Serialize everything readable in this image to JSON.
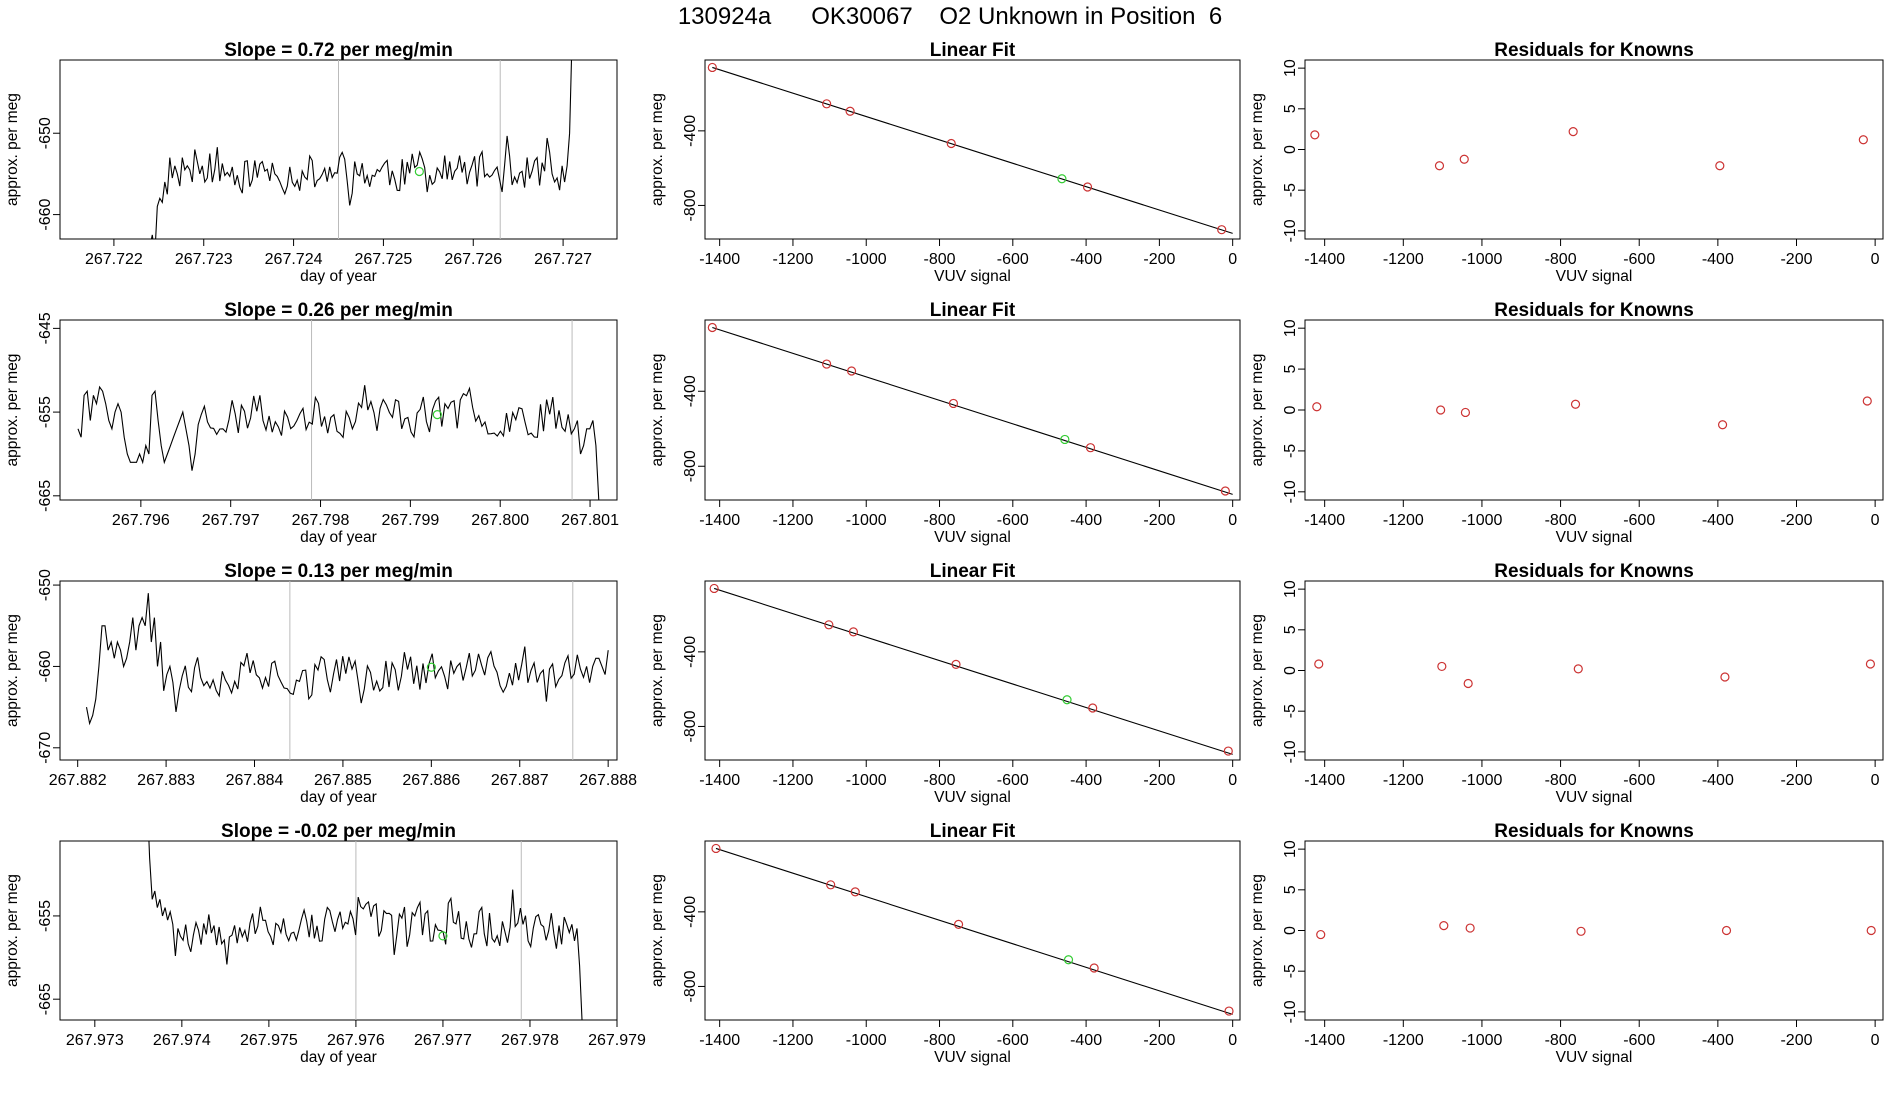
{
  "header": {
    "title": "130924a      OK30067    O2 Unknown in Position  6"
  },
  "colors": {
    "known_point": "#cc3333",
    "unknown_point": "#33cc33",
    "line": "#000000",
    "guide": "#bbbbbb"
  },
  "chart_data": [
    {
      "type": "line",
      "title": "Slope =  0.72  per meg/min",
      "xlabel": "day of year",
      "ylabel": "approx. per meg",
      "xlim": [
        267.7214,
        267.7276
      ],
      "ylim": [
        -663,
        -641
      ],
      "xticks": [
        {
          "v": 267.722,
          "l": "267.722"
        },
        {
          "v": 267.723,
          "l": "267.723"
        },
        {
          "v": 267.724,
          "l": "267.724"
        },
        {
          "v": 267.725,
          "l": "267.725"
        },
        {
          "v": 267.726,
          "l": "267.726"
        },
        {
          "v": 267.727,
          "l": "267.727"
        }
      ],
      "yticks": [
        {
          "v": -650,
          "l": "-650"
        },
        {
          "v": -660,
          "l": "-660"
        }
      ],
      "x_start": 267.7224,
      "x_end": 267.7271,
      "start_values": [
        -664,
        -662.5,
        -665,
        -659,
        -658,
        -658.5,
        -656,
        -657.5,
        -653,
        -655.5,
        -654,
        -655,
        -656.5,
        -653,
        -654.5,
        -654,
        -654.5,
        -656,
        -652,
        -653.5,
        -655,
        -654,
        -656,
        -655.5,
        -652.5
      ],
      "end_values": [
        -655,
        -656,
        -655.5,
        -657,
        -654,
        -656,
        -654,
        -650
      ],
      "end_top": -638,
      "center": -654.8,
      "seed": 11,
      "guides": [
        267.7245,
        267.7263
      ],
      "unknown_point": {
        "x": 267.7254,
        "y": -654.7
      }
    },
    {
      "type": "scatter",
      "title": "Linear Fit",
      "xlabel": "VUV signal",
      "ylabel": "approx. per meg",
      "xlim": [
        -1440,
        20
      ],
      "ylim": [
        -980,
        -20
      ],
      "xticks": [
        {
          "v": -1400,
          "l": "-1400"
        },
        {
          "v": -1200,
          "l": "-1200"
        },
        {
          "v": -1000,
          "l": "-1000"
        },
        {
          "v": -800,
          "l": "-800"
        },
        {
          "v": -600,
          "l": "-600"
        },
        {
          "v": -400,
          "l": "-400"
        },
        {
          "v": -200,
          "l": "-200"
        },
        {
          "v": 0,
          "l": "0"
        }
      ],
      "yticks": [
        {
          "v": -400,
          "l": "-400"
        },
        {
          "v": -800,
          "l": "-800"
        }
      ],
      "fit_line": [
        [
          -1420,
          -60
        ],
        [
          0,
          -950
        ]
      ],
      "knowns": [
        [
          -1420,
          -60
        ],
        [
          -1108,
          -255
        ],
        [
          -1044,
          -295
        ],
        [
          -768,
          -468
        ],
        [
          -396,
          -701
        ],
        [
          -30,
          -930
        ]
      ],
      "unknown": [
        -466,
        -657
      ]
    },
    {
      "type": "scatter",
      "title": "Residuals for Knowns",
      "xlabel": "VUV signal",
      "ylabel": "approx. per meg",
      "xlim": [
        -1450,
        20
      ],
      "ylim": [
        -11,
        11
      ],
      "xticks": [
        {
          "v": -1400,
          "l": "-1400"
        },
        {
          "v": -1200,
          "l": "-1200"
        },
        {
          "v": -1000,
          "l": "-1000"
        },
        {
          "v": -800,
          "l": "-800"
        },
        {
          "v": -600,
          "l": "-600"
        },
        {
          "v": -400,
          "l": "-400"
        },
        {
          "v": -200,
          "l": "-200"
        },
        {
          "v": 0,
          "l": "0"
        }
      ],
      "yticks": [
        {
          "v": 10,
          "l": "10"
        },
        {
          "v": 5,
          "l": "5"
        },
        {
          "v": 0,
          "l": "0"
        },
        {
          "v": -5,
          "l": "-5"
        },
        {
          "v": -10,
          "l": "-10"
        }
      ],
      "points": [
        [
          -1425,
          1.8
        ],
        [
          -1108,
          -2.0
        ],
        [
          -1045,
          -1.2
        ],
        [
          -768,
          2.2
        ],
        [
          -395,
          -2.0
        ],
        [
          -30,
          1.2
        ]
      ]
    },
    {
      "type": "line",
      "title": "Slope =  0.26  per meg/min",
      "xlabel": "day of year",
      "ylabel": "approx. per meg",
      "xlim": [
        267.7951,
        267.8013
      ],
      "ylim": [
        -665.5,
        -644
      ],
      "xticks": [
        {
          "v": 267.796,
          "l": "267.796"
        },
        {
          "v": 267.797,
          "l": "267.797"
        },
        {
          "v": 267.798,
          "l": "267.798"
        },
        {
          "v": 267.799,
          "l": "267.799"
        },
        {
          "v": 267.8,
          "l": "267.800"
        },
        {
          "v": 267.801,
          "l": "267.801"
        }
      ],
      "yticks": [
        {
          "v": -645,
          "l": "-645"
        },
        {
          "v": -655,
          "l": "-655"
        },
        {
          "v": -665,
          "l": "-665"
        }
      ],
      "x_start": 267.7953,
      "x_end": 267.8011,
      "start_values": [
        -657,
        -658,
        -653,
        -652.5,
        -656,
        -653,
        -654,
        -652,
        -652.5,
        -654,
        -656,
        -657,
        -655,
        -654,
        -655,
        -658,
        -660,
        -661,
        -661,
        -661,
        -660,
        -661,
        -659,
        -660,
        -653,
        -652.5,
        -656,
        -659,
        -661,
        -660,
        -659,
        -658,
        -657,
        -656,
        -655,
        -657,
        -659,
        -662,
        -660
      ],
      "end_values": [
        -657,
        -656,
        -660,
        -659,
        -657,
        -657,
        -656,
        -659,
        -666
      ],
      "end_top": null,
      "center": -655.3,
      "seed": 23,
      "guides": [
        267.7979,
        267.8008
      ],
      "unknown_point": {
        "x": 267.7993,
        "y": -655.3
      }
    },
    {
      "type": "scatter",
      "title": "Linear Fit",
      "xlabel": "VUV signal",
      "ylabel": "approx. per meg",
      "xlim": [
        -1440,
        20
      ],
      "ylim": [
        -980,
        -20
      ],
      "xticks": [
        {
          "v": -1400,
          "l": "-1400"
        },
        {
          "v": -1200,
          "l": "-1200"
        },
        {
          "v": -1000,
          "l": "-1000"
        },
        {
          "v": -800,
          "l": "-800"
        },
        {
          "v": -600,
          "l": "-600"
        },
        {
          "v": -400,
          "l": "-400"
        },
        {
          "v": -200,
          "l": "-200"
        },
        {
          "v": 0,
          "l": "0"
        }
      ],
      "yticks": [
        {
          "v": -400,
          "l": "-400"
        },
        {
          "v": -800,
          "l": "-800"
        }
      ],
      "fit_line": [
        [
          -1420,
          -60
        ],
        [
          0,
          -950
        ]
      ],
      "knowns": [
        [
          -1420,
          -60
        ],
        [
          -1108,
          -255
        ],
        [
          -1040,
          -292
        ],
        [
          -762,
          -465
        ],
        [
          -388,
          -701
        ],
        [
          -20,
          -932
        ]
      ],
      "unknown": [
        -458,
        -657
      ]
    },
    {
      "type": "scatter",
      "title": "Residuals for Knowns",
      "xlabel": "VUV signal",
      "ylabel": "approx. per meg",
      "xlim": [
        -1450,
        20
      ],
      "ylim": [
        -11,
        11
      ],
      "xticks": [
        {
          "v": -1400,
          "l": "-1400"
        },
        {
          "v": -1200,
          "l": "-1200"
        },
        {
          "v": -1000,
          "l": "-1000"
        },
        {
          "v": -800,
          "l": "-800"
        },
        {
          "v": -600,
          "l": "-600"
        },
        {
          "v": -400,
          "l": "-400"
        },
        {
          "v": -200,
          "l": "-200"
        },
        {
          "v": 0,
          "l": "0"
        }
      ],
      "points": [
        [
          -1420,
          0.4
        ],
        [
          -1105,
          0.0
        ],
        [
          -1042,
          -0.3
        ],
        [
          -762,
          0.7
        ],
        [
          -388,
          -1.8
        ],
        [
          -20,
          1.1
        ]
      ],
      "yticks": [
        {
          "v": 10,
          "l": "10"
        },
        {
          "v": 5,
          "l": "5"
        },
        {
          "v": 0,
          "l": "0"
        },
        {
          "v": -5,
          "l": "-5"
        },
        {
          "v": -10,
          "l": "-10"
        }
      ]
    },
    {
      "type": "line",
      "title": "Slope =  0.13  per meg/min",
      "xlabel": "day of year",
      "ylabel": "approx. per meg",
      "xlim": [
        267.8818,
        267.8881
      ],
      "ylim": [
        -671.5,
        -649.5
      ],
      "xticks": [
        {
          "v": 267.882,
          "l": "267.882"
        },
        {
          "v": 267.883,
          "l": "267.883"
        },
        {
          "v": 267.884,
          "l": "267.884"
        },
        {
          "v": 267.885,
          "l": "267.885"
        },
        {
          "v": 267.886,
          "l": "267.886"
        },
        {
          "v": 267.887,
          "l": "267.887"
        },
        {
          "v": 267.888,
          "l": "267.888"
        }
      ],
      "yticks": [
        {
          "v": -650,
          "l": "-650"
        },
        {
          "v": -660,
          "l": "-660"
        },
        {
          "v": -670,
          "l": "-670"
        }
      ],
      "x_start": 267.8821,
      "x_end": 267.888,
      "start_values": [
        -665,
        -667,
        -666,
        -664,
        -660,
        -655,
        -655,
        -658,
        -657,
        -659,
        -657,
        -658,
        -660,
        -659,
        -657,
        -654,
        -658,
        -655,
        -654,
        -655,
        -651,
        -657,
        -654,
        -660,
        -657,
        -663,
        -661,
        -660
      ],
      "end_values": [
        -660,
        -662,
        -660,
        -659,
        -659,
        -660,
        -661,
        -658
      ],
      "end_top": null,
      "center": -660.8,
      "seed": 37,
      "guides": [
        267.8844,
        267.8876
      ],
      "unknown_point": {
        "x": 267.886,
        "y": -660.1
      }
    },
    {
      "type": "scatter",
      "title": "Linear Fit",
      "xlabel": "VUV signal",
      "ylabel": "approx. per meg",
      "xlim": [
        -1440,
        20
      ],
      "ylim": [
        -980,
        -20
      ],
      "xticks": [
        {
          "v": -1400,
          "l": "-1400"
        },
        {
          "v": -1200,
          "l": "-1200"
        },
        {
          "v": -1000,
          "l": "-1000"
        },
        {
          "v": -800,
          "l": "-800"
        },
        {
          "v": -600,
          "l": "-600"
        },
        {
          "v": -400,
          "l": "-400"
        },
        {
          "v": -200,
          "l": "-200"
        },
        {
          "v": 0,
          "l": "0"
        }
      ],
      "yticks": [
        {
          "v": -400,
          "l": "-400"
        },
        {
          "v": -800,
          "l": "-800"
        }
      ],
      "fit_line": [
        [
          -1415,
          -60
        ],
        [
          0,
          -950
        ]
      ],
      "knowns": [
        [
          -1415,
          -60
        ],
        [
          -1102,
          -255
        ],
        [
          -1035,
          -293
        ],
        [
          -755,
          -467
        ],
        [
          -382,
          -701
        ],
        [
          -12,
          -932
        ]
      ],
      "unknown": [
        -452,
        -657
      ]
    },
    {
      "type": "scatter",
      "title": "Residuals for Knowns",
      "xlabel": "VUV signal",
      "ylabel": "approx. per meg",
      "xlim": [
        -1450,
        20
      ],
      "ylim": [
        -11,
        11
      ],
      "xticks": [
        {
          "v": -1400,
          "l": "-1400"
        },
        {
          "v": -1200,
          "l": "-1200"
        },
        {
          "v": -1000,
          "l": "-1000"
        },
        {
          "v": -800,
          "l": "-800"
        },
        {
          "v": -600,
          "l": "-600"
        },
        {
          "v": -400,
          "l": "-400"
        },
        {
          "v": -200,
          "l": "-200"
        },
        {
          "v": 0,
          "l": "0"
        }
      ],
      "yticks": [
        {
          "v": 10,
          "l": "10"
        },
        {
          "v": 5,
          "l": "5"
        },
        {
          "v": 0,
          "l": "0"
        },
        {
          "v": -5,
          "l": "-5"
        },
        {
          "v": -10,
          "l": "-10"
        }
      ],
      "points": [
        [
          -1415,
          0.8
        ],
        [
          -1102,
          0.5
        ],
        [
          -1035,
          -1.6
        ],
        [
          -755,
          0.2
        ],
        [
          -382,
          -0.8
        ],
        [
          -12,
          0.8
        ]
      ]
    },
    {
      "type": "line",
      "title": "Slope =  -0.02  per meg/min",
      "xlabel": "day of year",
      "ylabel": "approx. per meg",
      "xlim": [
        267.9726,
        267.979
      ],
      "ylim": [
        -667.5,
        -646
      ],
      "xticks": [
        {
          "v": 267.973,
          "l": "267.973"
        },
        {
          "v": 267.974,
          "l": "267.974"
        },
        {
          "v": 267.975,
          "l": "267.975"
        },
        {
          "v": 267.976,
          "l": "267.976"
        },
        {
          "v": 267.977,
          "l": "267.977"
        },
        {
          "v": 267.978,
          "l": "267.978"
        },
        {
          "v": 267.979,
          "l": "267.979"
        }
      ],
      "yticks": [
        {
          "v": -655,
          "l": "-655"
        },
        {
          "v": -665,
          "l": "-665"
        }
      ],
      "x_start": 267.9736,
      "x_end": 267.9786,
      "start_top": -640,
      "start_values": [
        -648,
        -653,
        -652,
        -654,
        -653,
        -655,
        -654,
        -655.5,
        -654.5,
        -656
      ],
      "end_values": [
        -656,
        -657,
        -656,
        -658,
        -656.5,
        -661,
        -668
      ],
      "end_top": null,
      "center": -656.2,
      "seed": 53,
      "guides": [
        267.976,
        267.9779
      ],
      "unknown_point": {
        "x": 267.977,
        "y": -657.4
      }
    },
    {
      "type": "scatter",
      "title": "Linear Fit",
      "xlabel": "VUV signal",
      "ylabel": "approx. per meg",
      "xlim": [
        -1440,
        20
      ],
      "ylim": [
        -980,
        -20
      ],
      "xticks": [
        {
          "v": -1400,
          "l": "-1400"
        },
        {
          "v": -1200,
          "l": "-1200"
        },
        {
          "v": -1000,
          "l": "-1000"
        },
        {
          "v": -800,
          "l": "-800"
        },
        {
          "v": -600,
          "l": "-600"
        },
        {
          "v": -400,
          "l": "-400"
        },
        {
          "v": -200,
          "l": "-200"
        },
        {
          "v": 0,
          "l": "0"
        }
      ],
      "yticks": [
        {
          "v": -400,
          "l": "-400"
        },
        {
          "v": -800,
          "l": "-800"
        }
      ],
      "fit_line": [
        [
          -1410,
          -60
        ],
        [
          0,
          -950
        ]
      ],
      "knowns": [
        [
          -1410,
          -60
        ],
        [
          -1097,
          -255
        ],
        [
          -1030,
          -293
        ],
        [
          -748,
          -467
        ],
        [
          -378,
          -701
        ],
        [
          -10,
          -932
        ]
      ],
      "unknown": [
        -448,
        -657
      ]
    },
    {
      "type": "scatter",
      "title": "Residuals for Knowns",
      "xlabel": "VUV signal",
      "ylabel": "approx. per meg",
      "xlim": [
        -1450,
        20
      ],
      "ylim": [
        -11,
        11
      ],
      "xticks": [
        {
          "v": -1400,
          "l": "-1400"
        },
        {
          "v": -1200,
          "l": "-1200"
        },
        {
          "v": -1000,
          "l": "-1000"
        },
        {
          "v": -800,
          "l": "-800"
        },
        {
          "v": -600,
          "l": "-600"
        },
        {
          "v": -400,
          "l": "-400"
        },
        {
          "v": -200,
          "l": "-200"
        },
        {
          "v": 0,
          "l": "0"
        }
      ],
      "yticks": [
        {
          "v": 10,
          "l": "10"
        },
        {
          "v": 5,
          "l": "5"
        },
        {
          "v": 0,
          "l": "0"
        },
        {
          "v": -5,
          "l": "-5"
        },
        {
          "v": -10,
          "l": "-10"
        }
      ],
      "points": [
        [
          -1410,
          -0.5
        ],
        [
          -1097,
          0.6
        ],
        [
          -1030,
          0.3
        ],
        [
          -748,
          -0.1
        ],
        [
          -378,
          0.0
        ],
        [
          -10,
          0.0
        ]
      ]
    }
  ]
}
